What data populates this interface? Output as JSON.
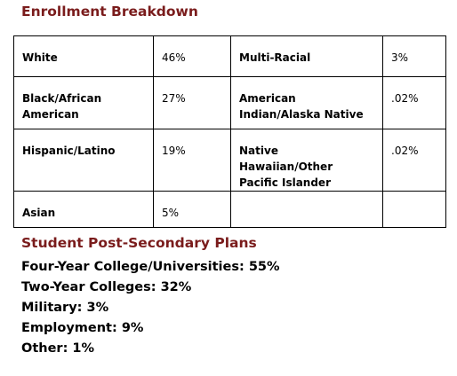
{
  "enrollment": {
    "title": "Enrollment Breakdown",
    "rows": [
      [
        {
          "label": "White",
          "value": "46%"
        },
        {
          "label": "Multi-Racial",
          "value": "3%"
        }
      ],
      [
        {
          "label": "Black/African American",
          "value": "27%"
        },
        {
          "label": "American Indian/Alaska Native",
          "value": ".02%"
        }
      ],
      [
        {
          "label": "Hispanic/Latino",
          "value": "19%"
        },
        {
          "label": "Native Hawaiian/Other Pacific Islander",
          "value": ".02%"
        }
      ],
      [
        {
          "label": "Asian",
          "value": "5%"
        },
        {
          "label": "",
          "value": ""
        }
      ]
    ]
  },
  "plans": {
    "title": "Student Post-Secondary Plans",
    "items": [
      "Four-Year College/Universities: 55%",
      "Two-Year Colleges: 32%",
      "Military: 3%",
      "Employment: 9%",
      "Other: 1%"
    ]
  },
  "colors": {
    "heading": "#7a1c1c",
    "text": "#000000",
    "border": "#000000"
  }
}
